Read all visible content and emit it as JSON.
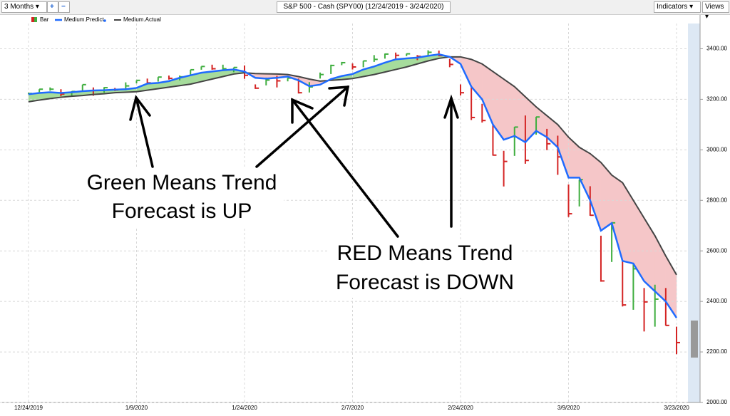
{
  "toolbar": {
    "period": "3 Months",
    "zoom_in": "+",
    "zoom_out": "−",
    "indicators": "Indicators",
    "views": "Views"
  },
  "chart_data": {
    "type": "ohlc",
    "title": "S&P 500 - Cash (SPY00) (12/24/2019 - 3/24/2020)",
    "categories": [
      "12/24/2019",
      null,
      null,
      null,
      null,
      null,
      null,
      null,
      null,
      null,
      "1/9/2020",
      null,
      null,
      null,
      null,
      null,
      null,
      null,
      null,
      null,
      "1/24/2020",
      null,
      null,
      null,
      null,
      null,
      null,
      null,
      null,
      null,
      "2/7/2020",
      null,
      null,
      null,
      null,
      null,
      null,
      null,
      null,
      null,
      "2/24/2020",
      null,
      null,
      null,
      null,
      null,
      null,
      null,
      null,
      null,
      "3/9/2020",
      null,
      null,
      null,
      null,
      null,
      null,
      null,
      null,
      null,
      "3/23/2020"
    ],
    "series": [
      {
        "name": "Bar",
        "up_color": "#3fae3f",
        "down_color": "#d42424",
        "high": [
          3226,
          3240,
          3247,
          3240,
          3232,
          3258,
          3247,
          3248,
          3245,
          3267,
          3275,
          3282,
          3288,
          3294,
          3294,
          3317,
          3330,
          3337,
          3337,
          3326,
          3334,
          3259,
          3286,
          3293,
          3285,
          3282,
          3268,
          3306,
          3337,
          3348,
          3342,
          3352,
          3375,
          3381,
          3385,
          3381,
          3375,
          3394,
          3393,
          3360,
          3259,
          3247,
          3182,
          3097,
          2996,
          3091,
          3136,
          3131,
          3083,
          3056,
          2863,
          2882,
          2856,
          2660,
          2711,
          2562,
          2553,
          2453,
          2466,
          2453,
          2300
        ],
        "low": [
          3220,
          3227,
          3234,
          3212,
          3213,
          3235,
          3214,
          3226,
          3233,
          3236,
          3263,
          3261,
          3270,
          3278,
          3275,
          3295,
          3317,
          3317,
          3318,
          3307,
          3281,
          3241,
          3255,
          3247,
          3271,
          3223,
          3227,
          3282,
          3300,
          3335,
          3318,
          3327,
          3348,
          3361,
          3360,
          3371,
          3355,
          3373,
          3370,
          3327,
          3215,
          3118,
          3108,
          2977,
          2855,
          2976,
          2945,
          3060,
          2999,
          2901,
          2734,
          2776,
          2739,
          2478,
          2556,
          2380,
          2367,
          2281,
          2300,
          2304,
          2191
        ],
        "close": [
          3223,
          3240,
          3240,
          3221,
          3231,
          3258,
          3235,
          3246,
          3237,
          3253,
          3275,
          3265,
          3288,
          3283,
          3289,
          3317,
          3330,
          3321,
          3321,
          3326,
          3295,
          3244,
          3276,
          3273,
          3284,
          3226,
          3249,
          3298,
          3334,
          3345,
          3328,
          3352,
          3358,
          3379,
          3374,
          3380,
          3370,
          3386,
          3373,
          3338,
          3226,
          3128,
          3116,
          2979,
          2954,
          3090,
          2958,
          3130,
          3024,
          2972,
          2747,
          2882,
          2741,
          2481,
          2711,
          2386,
          2529,
          2398,
          2409,
          2305,
          2237
        ]
      },
      {
        "name": "Medium.Predict",
        "color": "#1f6bff",
        "values": [
          3220,
          3225,
          3228,
          3225,
          3228,
          3232,
          3235,
          3236,
          3238,
          3240,
          3245,
          3262,
          3265,
          3272,
          3285,
          3295,
          3305,
          3310,
          3315,
          3318,
          3310,
          3285,
          3282,
          3285,
          3290,
          3275,
          3252,
          3258,
          3280,
          3292,
          3300,
          3318,
          3330,
          3345,
          3358,
          3362,
          3365,
          3372,
          3378,
          3368,
          3340,
          3250,
          3200,
          3100,
          3040,
          3055,
          3030,
          3075,
          3050,
          3010,
          2890,
          2890,
          2800,
          2680,
          2710,
          2560,
          2550,
          2480,
          2440,
          2400,
          2335
        ]
      },
      {
        "name": "Medium.Actual",
        "color": "#444444",
        "values": [
          3190,
          3197,
          3203,
          3208,
          3212,
          3215,
          3219,
          3222,
          3226,
          3228,
          3230,
          3236,
          3242,
          3248,
          3254,
          3260,
          3270,
          3280,
          3290,
          3300,
          3305,
          3302,
          3301,
          3300,
          3298,
          3290,
          3280,
          3272,
          3275,
          3278,
          3282,
          3290,
          3298,
          3308,
          3318,
          3328,
          3340,
          3352,
          3362,
          3368,
          3368,
          3358,
          3340,
          3310,
          3280,
          3250,
          3210,
          3170,
          3135,
          3100,
          3050,
          3010,
          2985,
          2950,
          2900,
          2870,
          2800,
          2730,
          2660,
          2580,
          2505
        ]
      }
    ],
    "up_fill": "#a6dc9c",
    "down_fill": "#f5c6c8",
    "ylim": [
      2000,
      3500
    ],
    "yticks": [
      {
        "value": 2000,
        "label": "2000.00"
      },
      {
        "value": 2200,
        "label": "2200.00"
      },
      {
        "value": 2400,
        "label": "2400.00"
      },
      {
        "value": 2600,
        "label": "2600.00"
      },
      {
        "value": 2800,
        "label": "2800.00"
      },
      {
        "value": 3000,
        "label": "3000.00"
      },
      {
        "value": 3200,
        "label": "3200.00"
      },
      {
        "value": 3400,
        "label": "3400.00"
      }
    ],
    "grid": true,
    "annotations": [
      "Green Means Trend",
      "Forecast is UP",
      "RED Means Trend",
      "Forecast is DOWN"
    ]
  }
}
